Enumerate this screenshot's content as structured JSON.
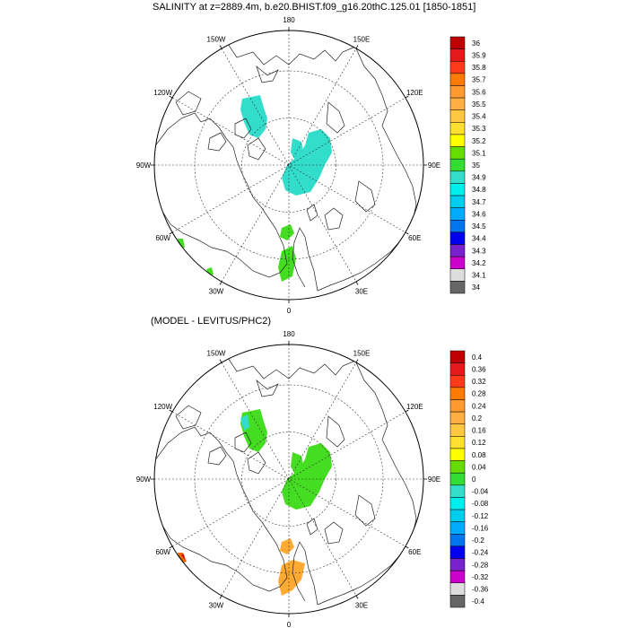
{
  "chart_data": [
    {
      "type": "polar_map",
      "title": "SALINITY at z=2889.4m, b.e20.BHIST.f09_g16.20thC.125.01 [1850-1851]",
      "lon_labels": {
        "top": "180",
        "bottom": "0",
        "left": "90W",
        "right": "90E",
        "ul": "150W",
        "ur": "150E",
        "ul2": "120W",
        "ur2": "120E",
        "ll2": "60W",
        "lr2": "60E",
        "ll": "30W",
        "lr": "30E"
      },
      "colorbar": {
        "labels": [
          "36",
          "35.9",
          "35.8",
          "35.7",
          "35.6",
          "35.5",
          "35.4",
          "35.3",
          "35.2",
          "35.1",
          "35",
          "34.9",
          "34.8",
          "34.7",
          "34.6",
          "34.5",
          "34.4",
          "34.3",
          "34.2",
          "34.1",
          "34"
        ],
        "colors": [
          "#c00000",
          "#e61a1a",
          "#ff3a1a",
          "#ff7a00",
          "#ff9a30",
          "#ffb040",
          "#ffc840",
          "#ffe030",
          "#ffff00",
          "#66dd00",
          "#33dd33",
          "#33ddcc",
          "#00eeee",
          "#00ccee",
          "#00aaff",
          "#0077ee",
          "#0000ee",
          "#7722cc",
          "#cc00cc",
          "#dddddd",
          "#666666"
        ]
      }
    },
    {
      "type": "polar_map",
      "title": "(MODEL - LEVITUS/PHC2)",
      "lon_labels": {
        "top": "180",
        "bottom": "0",
        "left": "90W",
        "right": "90E",
        "ul": "150W",
        "ur": "150E",
        "ul2": "120W",
        "ur2": "120E",
        "ll2": "60W",
        "lr2": "60E",
        "ll": "30W",
        "lr": "30E"
      },
      "colorbar": {
        "labels": [
          "0.4",
          "0.36",
          "0.32",
          "0.28",
          "0.24",
          "0.2",
          "0.16",
          "0.12",
          "0.08",
          "0.04",
          "0",
          "-0.04",
          "-0.08",
          "-0.12",
          "-0.16",
          "-0.2",
          "-0.24",
          "-0.28",
          "-0.32",
          "-0.36",
          "-0.4"
        ],
        "colors": [
          "#c00000",
          "#e61a1a",
          "#ff3a1a",
          "#ff7a00",
          "#ff9a30",
          "#ffb040",
          "#ffc840",
          "#ffe030",
          "#ffff00",
          "#66dd00",
          "#33dd33",
          "#33ddcc",
          "#00eeee",
          "#00ccee",
          "#00aaff",
          "#0077ee",
          "#0000ee",
          "#7722cc",
          "#cc00cc",
          "#dddddd",
          "#666666"
        ]
      }
    }
  ]
}
